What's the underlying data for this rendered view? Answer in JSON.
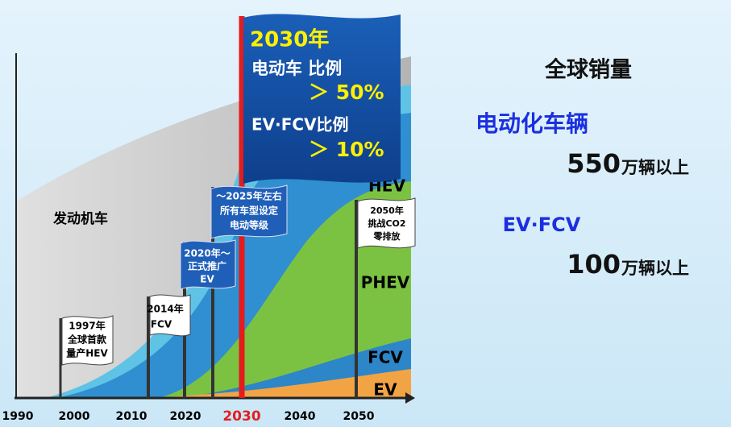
{
  "axis": {
    "years": [
      "1990",
      "2000",
      "2010",
      "2020",
      "2030",
      "2040",
      "2050"
    ]
  },
  "areas": {
    "engine": "发动机车",
    "hev": "HEV",
    "phev": "PHEV",
    "fcv": "FCV",
    "ev": "EV"
  },
  "flags": [
    {
      "lines": [
        "1997年",
        "全球首款",
        "量产HEV"
      ]
    },
    {
      "lines": [
        "2014年",
        "FCV"
      ]
    },
    {
      "lines": [
        "2020年～",
        "正式推广",
        "EV"
      ]
    },
    {
      "lines": [
        "～2025年左右",
        "所有车型设定",
        "电动等级"
      ]
    },
    {
      "lines": [
        "2050年",
        "挑战CO2",
        "零排放"
      ]
    }
  ],
  "banner": {
    "year": "2030年",
    "ev_label": "电动车 比例",
    "ev_share": "＞ 50%",
    "evfcv_label": "EV·FCV比例",
    "evfcv_share": "＞ 10%"
  },
  "side": {
    "title": "全球销量",
    "electrified": "电动化车辆",
    "electrified_value": "550",
    "electrified_unit": "万辆以上",
    "evfcv": "EV·FCV",
    "evfcv_value": "100",
    "evfcv_unit": "万辆以上"
  }
}
